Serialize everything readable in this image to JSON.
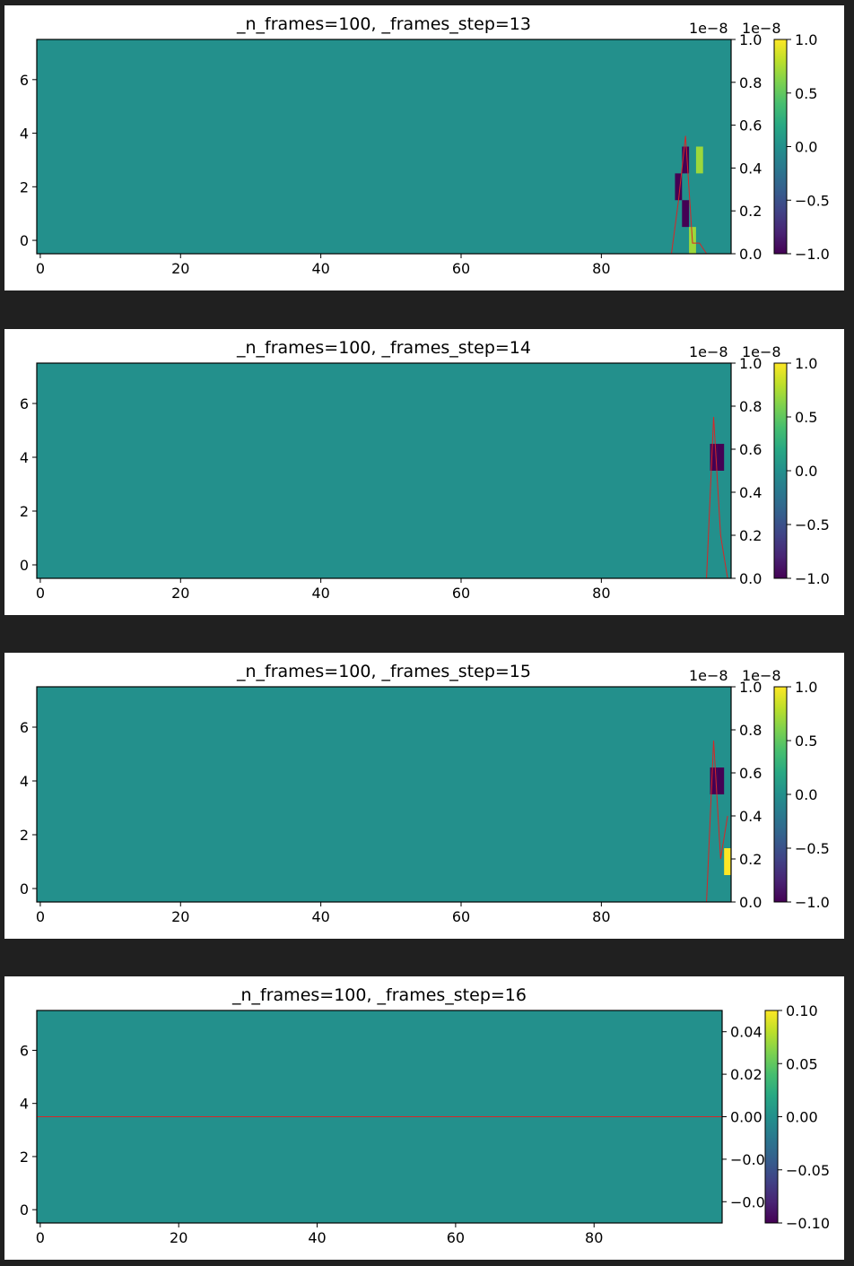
{
  "chart_data": [
    {
      "type": "heatmap",
      "title": "_n_frames=100, _frames_step=13",
      "x_range": [
        -0.5,
        98.5
      ],
      "y_range": [
        -0.5,
        7.5
      ],
      "x_ticks": [
        0,
        20,
        40,
        60,
        80
      ],
      "y_ticks": [
        0,
        2,
        4,
        6
      ],
      "background_value": 0.0,
      "cells": [
        {
          "x": 91,
          "y": 2,
          "value": -1.0
        },
        {
          "x": 92,
          "y": 1,
          "value": -1.0
        },
        {
          "x": 92,
          "y": 3,
          "value": -1.0
        },
        {
          "x": 93,
          "y": 0,
          "value": 0.7
        },
        {
          "x": 94,
          "y": 3,
          "value": 0.7
        }
      ],
      "right_axis": {
        "range": [
          0.0,
          1.0
        ],
        "ticks": [
          "0.0",
          "0.2",
          "0.4",
          "0.6",
          "0.8",
          "1.0"
        ],
        "multiplier_label": "1e−8"
      },
      "line": {
        "color": "#d62728",
        "points": [
          [
            90,
            0.0
          ],
          [
            91,
            0.25
          ],
          [
            92,
            0.55
          ],
          [
            93,
            0.05
          ],
          [
            94,
            0.05
          ],
          [
            95,
            0.0
          ]
        ]
      },
      "colorbar": {
        "range": [
          -1.0,
          1.0
        ],
        "ticks": [
          "−1.0",
          "−0.5",
          "0.0",
          "0.5",
          "1.0"
        ],
        "multiplier_label": "1e−8"
      }
    },
    {
      "type": "heatmap",
      "title": "_n_frames=100, _frames_step=14",
      "x_range": [
        -0.5,
        98.5
      ],
      "y_range": [
        -0.5,
        7.5
      ],
      "x_ticks": [
        0,
        20,
        40,
        60,
        80
      ],
      "y_ticks": [
        0,
        2,
        4,
        6
      ],
      "background_value": 0.0,
      "cells": [
        {
          "x": 96,
          "y": 4,
          "value": -1.0
        },
        {
          "x": 97,
          "y": 4,
          "value": -1.0
        }
      ],
      "right_axis": {
        "range": [
          0.0,
          1.0
        ],
        "ticks": [
          "0.0",
          "0.2",
          "0.4",
          "0.6",
          "0.8",
          "1.0"
        ],
        "multiplier_label": "1e−8"
      },
      "line": {
        "color": "#d62728",
        "points": [
          [
            95,
            0.0
          ],
          [
            96,
            0.75
          ],
          [
            97,
            0.2
          ],
          [
            98,
            0.0
          ]
        ]
      },
      "colorbar": {
        "range": [
          -1.0,
          1.0
        ],
        "ticks": [
          "−1.0",
          "−0.5",
          "0.0",
          "0.5",
          "1.0"
        ],
        "multiplier_label": "1e−8"
      }
    },
    {
      "type": "heatmap",
      "title": "_n_frames=100, _frames_step=15",
      "x_range": [
        -0.5,
        98.5
      ],
      "y_range": [
        -0.5,
        7.5
      ],
      "x_ticks": [
        0,
        20,
        40,
        60,
        80
      ],
      "y_ticks": [
        0,
        2,
        4,
        6
      ],
      "background_value": 0.0,
      "cells": [
        {
          "x": 96,
          "y": 4,
          "value": -1.0
        },
        {
          "x": 97,
          "y": 4,
          "value": -1.0
        },
        {
          "x": 98,
          "y": 1,
          "value": 1.0
        }
      ],
      "right_axis": {
        "range": [
          0.0,
          1.0
        ],
        "ticks": [
          "0.0",
          "0.2",
          "0.4",
          "0.6",
          "0.8",
          "1.0"
        ],
        "multiplier_label": "1e−8"
      },
      "line": {
        "color": "#d62728",
        "points": [
          [
            95,
            0.0
          ],
          [
            96,
            0.75
          ],
          [
            97,
            0.2
          ],
          [
            98,
            0.4
          ]
        ]
      },
      "colorbar": {
        "range": [
          -1.0,
          1.0
        ],
        "ticks": [
          "−1.0",
          "−0.5",
          "0.0",
          "0.5",
          "1.0"
        ],
        "multiplier_label": "1e−8"
      }
    },
    {
      "type": "heatmap",
      "title": "_n_frames=100, _frames_step=16",
      "x_range": [
        -0.5,
        98.5
      ],
      "y_range": [
        -0.5,
        7.5
      ],
      "x_ticks": [
        0,
        20,
        40,
        60,
        80
      ],
      "y_ticks": [
        0,
        2,
        4,
        6
      ],
      "background_value": 0.0,
      "cells": [],
      "right_axis": {
        "range": [
          -0.05,
          0.05
        ],
        "ticks": [
          "−0.04",
          "−0.02",
          "0.00",
          "0.02",
          "0.04"
        ],
        "tick_values": [
          -0.04,
          -0.02,
          0.0,
          0.02,
          0.04
        ],
        "multiplier_label": ""
      },
      "line": {
        "color": "#d62728",
        "points": [
          [
            -0.5,
            0.0
          ],
          [
            98.5,
            0.0
          ]
        ]
      },
      "colorbar": {
        "range": [
          -0.1,
          0.1
        ],
        "ticks": [
          "−0.10",
          "−0.05",
          "0.00",
          "0.05",
          "0.10"
        ],
        "multiplier_label": ""
      }
    }
  ]
}
